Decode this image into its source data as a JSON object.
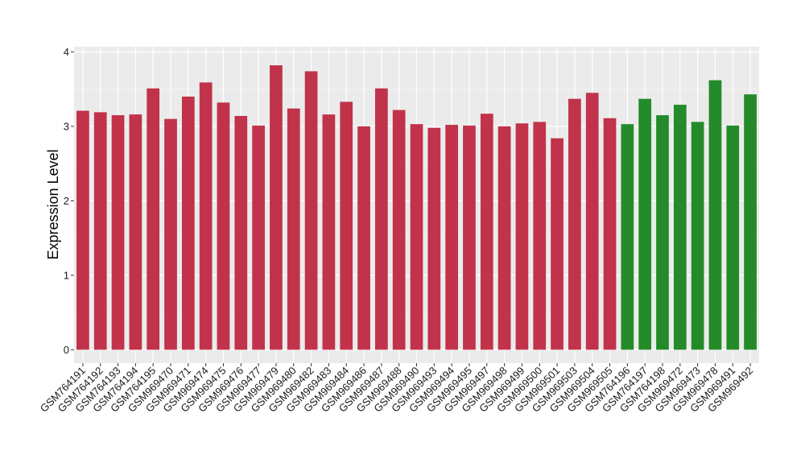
{
  "chart_data": {
    "type": "bar",
    "title": "",
    "xlabel": "",
    "ylabel": "Expression Level",
    "ylim": [
      -0.18,
      4.07
    ],
    "yticks": [
      0,
      1,
      2,
      3,
      4
    ],
    "grid": true,
    "panel_background": "#ebebeb",
    "categories": [
      "GSM764191",
      "GSM764192",
      "GSM764193",
      "GSM764194",
      "GSM764195",
      "GSM969470",
      "GSM969471",
      "GSM969474",
      "GSM969475",
      "GSM969476",
      "GSM969477",
      "GSM969479",
      "GSM969480",
      "GSM969482",
      "GSM969483",
      "GSM969484",
      "GSM969486",
      "GSM969487",
      "GSM969488",
      "GSM969490",
      "GSM969493",
      "GSM969494",
      "GSM969495",
      "GSM969497",
      "GSM969498",
      "GSM969499",
      "GSM969500",
      "GSM969501",
      "GSM969503",
      "GSM969504",
      "GSM969505",
      "GSM764196",
      "GSM764197",
      "GSM764198",
      "GSM969472",
      "GSM969473",
      "GSM969478",
      "GSM969491",
      "GSM969492"
    ],
    "values": [
      3.21,
      3.19,
      3.15,
      3.16,
      3.51,
      3.1,
      3.4,
      3.59,
      3.32,
      3.14,
      3.01,
      3.82,
      3.24,
      3.74,
      3.16,
      3.33,
      3.0,
      3.51,
      3.22,
      3.03,
      2.98,
      3.02,
      3.01,
      3.17,
      3.0,
      3.04,
      3.06,
      2.84,
      3.37,
      3.45,
      3.11,
      3.03,
      3.37,
      3.15,
      3.29,
      3.06,
      3.62,
      3.01,
      3.43
    ],
    "groups": [
      "red",
      "red",
      "red",
      "red",
      "red",
      "red",
      "red",
      "red",
      "red",
      "red",
      "red",
      "red",
      "red",
      "red",
      "red",
      "red",
      "red",
      "red",
      "red",
      "red",
      "red",
      "red",
      "red",
      "red",
      "red",
      "red",
      "red",
      "red",
      "red",
      "red",
      "red",
      "green",
      "green",
      "green",
      "green",
      "green",
      "green",
      "green",
      "green"
    ],
    "colors": {
      "red": "#c0334a",
      "green": "#238b2a"
    }
  }
}
